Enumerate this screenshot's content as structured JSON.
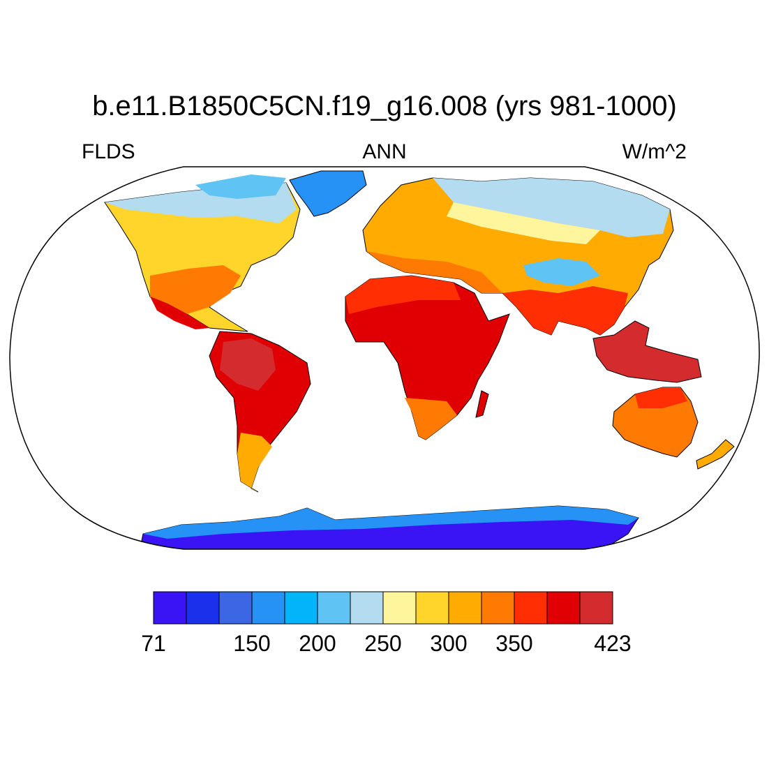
{
  "title": "b.e11.B1850C5CN.f19_g16.008 (yrs 981-1000)",
  "variable": "FLDS",
  "season": "ANN",
  "units": "W/m^2",
  "projection": "robinson",
  "colorbar": {
    "colors": [
      "#3a14f5",
      "#1b30ea",
      "#3b66e4",
      "#2692f5",
      "#02b5fb",
      "#5fc4f3",
      "#b3dcf1",
      "#fff59c",
      "#ffd52b",
      "#ffab01",
      "#ff7a02",
      "#ff2e03",
      "#e00003",
      "#d42b2f"
    ],
    "tick_labels": [
      "71",
      "150",
      "200",
      "250",
      "300",
      "350",
      "423"
    ]
  },
  "map_regions": [
    {
      "name": "greenland",
      "color": "#2692f5"
    },
    {
      "name": "antarctica",
      "color": "#3a14f5"
    },
    {
      "name": "north-america",
      "color": "#ffd52b"
    },
    {
      "name": "canada-arctic",
      "color": "#b3dcf1"
    },
    {
      "name": "south-america",
      "color": "#e00003"
    },
    {
      "name": "africa",
      "color": "#e00003"
    },
    {
      "name": "europe",
      "color": "#ffab01"
    },
    {
      "name": "siberia",
      "color": "#b3dcf1"
    },
    {
      "name": "south-asia",
      "color": "#ff2e03"
    },
    {
      "name": "maritime-continent",
      "color": "#d42b2f"
    },
    {
      "name": "australia",
      "color": "#ff7a02"
    },
    {
      "name": "new-zealand",
      "color": "#ffab01"
    }
  ]
}
